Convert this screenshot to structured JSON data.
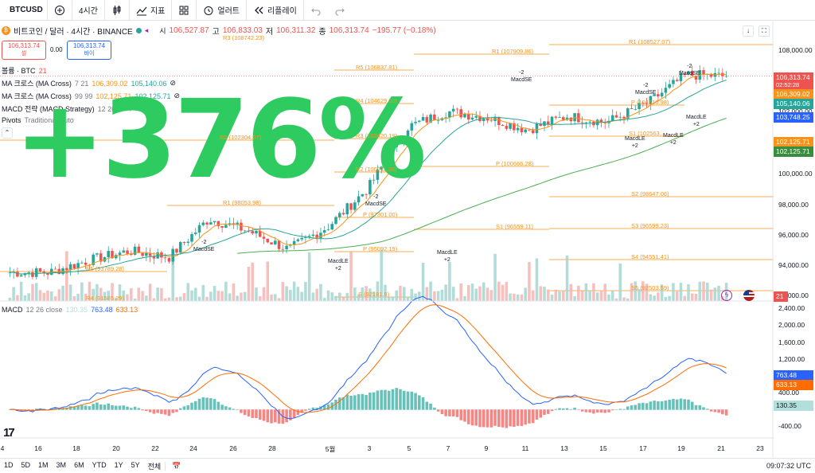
{
  "toolbar": {
    "symbol": "BTCUSD",
    "interval": "4시간",
    "indicators": "지표",
    "alerts": "얼러트",
    "replay": "리플레이"
  },
  "header": {
    "title": "비트코인 / 달러 · 4시간 · BINANCE",
    "o_label": "시",
    "o": "106,527.87",
    "h_label": "고",
    "h": "106,833.03",
    "l_label": "저",
    "l": "106,311.32",
    "c_label": "종",
    "c": "106,313.74",
    "change": "−195.77 (−0.18%)",
    "sell_price": "106,313.74",
    "sell_label": "셀",
    "spread": "0.00",
    "buy_price": "106,313.74",
    "buy_label": "바이"
  },
  "legends": {
    "volume": "볼륨 · BTC",
    "volume_val": "21",
    "ma1_name": "MA 크로스 (MA Cross)",
    "ma1_params": "7 21",
    "ma1_v1": "106,309.02",
    "ma1_v2": "105,140.06",
    "ma2_name": "MA 크로스 (MA Cross)",
    "ma2_params": "99 99",
    "ma2_v1": "102,125.71",
    "ma2_v2": "102,125.71",
    "macd_strat": "MACD 전략 (MACD Strategy)",
    "macd_strat_params": "12 26 9",
    "pivots": "Pivots",
    "pivots_params": "Traditional Auto",
    "macd": "MACD",
    "macd_params": "12 26 close",
    "macd_hist": "130.35",
    "macd_line": "763.48",
    "macd_signal": "633.13"
  },
  "overlay_text": "+376%",
  "price_axis": [
    "108,000.00",
    "104,000.00",
    "102,000.00",
    "100,000.00",
    "98,000.00",
    "96,000.00",
    "94,000.00",
    "92,000.00"
  ],
  "price_tags": {
    "last": "106,313.74",
    "countdown": "02:52:28",
    "ma7": "106,309.02",
    "ma21": "105,140.06",
    "blue": "103,748.25",
    "ma99a": "102,125.71",
    "ma99b": "102,125.71",
    "vol": "21"
  },
  "macd_axis": [
    "2,400.00",
    "2,000.00",
    "1,600.00",
    "1,200.00",
    "800.00",
    "400.00",
    "-400.00"
  ],
  "macd_tags": {
    "line": "763.48",
    "signal": "633.13",
    "hist": "130.35"
  },
  "x_axis": [
    "4",
    "16",
    "18",
    "20",
    "22",
    "24",
    "26",
    "28",
    "5월",
    "3",
    "5",
    "7",
    "9",
    "11",
    "13",
    "15",
    "17",
    "19",
    "21",
    "23"
  ],
  "pivots": {
    "R3a": "R3 (108742.23)",
    "R1b": "R1 (108527.07)",
    "R1c": "R1 (107909.86)",
    "R5": "R5 (106837.81)",
    "R4": "R4 (104629.00)",
    "R3": "R3 (102420.19)",
    "R2a": "R2 (102304.07)",
    "R2": "R2 (100211.38)",
    "P1": "P (100666.28)",
    "S2": "S2 (98647.06)",
    "R1": "R1 (98053.98)",
    "P2": "P (97301.00)",
    "S1": "S1 (96559.11)",
    "S3": "S3 (96599.23)",
    "P3": "P (95092.19)",
    "S4": "S4 (94551.41)",
    "R5b": "R5 (93789.28)",
    "S5": "S5 (92503.59)",
    "R4b": "R4 (91585.29)",
    "S": "S (92181.8)",
    "P4": "P (104610.98)",
    "S1b": "S1 (102563..."
  },
  "signals": {
    "se1": "-2\nMacdSE",
    "se2": "-2\nMacdSE",
    "se3": "-2\nMacdSE",
    "se4": "-2\nMacdSE",
    "se5": "-2\nMacdSE",
    "le1": "MacdLE\n+2",
    "le2": "MacdLE\n+2",
    "le3": "MacdLE\n+2",
    "le4": "MacdLE\n+2",
    "le5": "MacdLE\n+2"
  },
  "bottom_bar": {
    "ranges": [
      "1D",
      "5D",
      "1M",
      "3M",
      "6M",
      "YTD",
      "1Y",
      "5Y",
      "전체"
    ],
    "time": "09:07:32 UTC"
  },
  "colors": {
    "up": "#26a69a",
    "down": "#ef5350",
    "pivot": "#f7931a",
    "ma_fast": "#f7931a",
    "ma_slow": "#4caf50",
    "macd": "#2962ff",
    "signal": "#ff6d00",
    "overlay": "#2ecc60"
  },
  "chart_data": {
    "type": "candlestick",
    "x": [
      "4",
      "16",
      "18",
      "20",
      "22",
      "24",
      "26",
      "28",
      "5월",
      "3",
      "5",
      "7",
      "9",
      "11",
      "13",
      "15",
      "17",
      "19",
      "21",
      "23"
    ],
    "price_range": [
      92000,
      108500
    ],
    "close_approx": [
      93500,
      93500,
      94300,
      94900,
      94500,
      97000,
      96200,
      95000,
      96500,
      99000,
      103000,
      104000,
      103600,
      102800,
      103700,
      103300,
      104500,
      106400,
      106300
    ],
    "macd_range": [
      -600,
      2400
    ],
    "last_close": 106313.74
  }
}
